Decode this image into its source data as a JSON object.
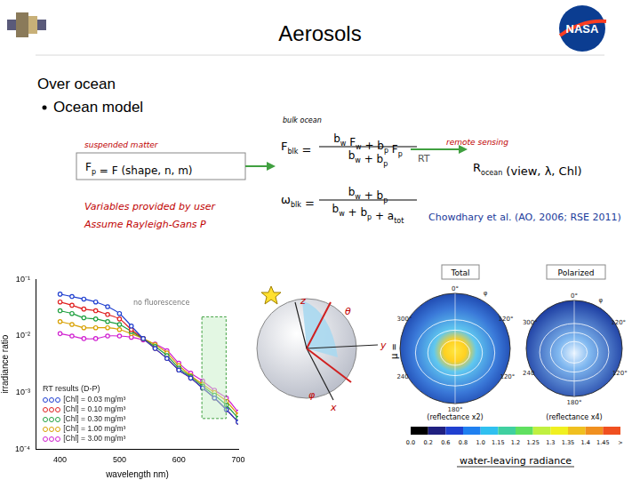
{
  "header": {
    "title": "Aerosols",
    "logo_text": "NASA"
  },
  "section": "Over ocean",
  "bullet": "Ocean model",
  "diagram": {
    "bulk_label": "bulk ocean",
    "suspended_label": "suspended matter",
    "particle_formula": [
      {
        "t": "F",
        "sub": "p"
      },
      {
        "t": " = F (shape, n, m)"
      }
    ],
    "user_notes": [
      "Variables provided by user",
      "Assume Rayleigh-Gans P"
    ],
    "bulk_F": {
      "lhs": [
        {
          "t": "F",
          "sub": "blk"
        },
        {
          "t": " ="
        }
      ],
      "num": [
        {
          "t": "b",
          "sub": "w"
        },
        {
          "t": " F",
          "sub": "w"
        },
        {
          "t": " + b",
          "sub": "p"
        },
        {
          "t": " F",
          "sub": "p"
        }
      ],
      "den": [
        {
          "t": "b",
          "sub": "w"
        },
        {
          "t": " + b",
          "sub": "p"
        }
      ]
    },
    "bulk_omega": {
      "lhs": [
        {
          "t": "ω",
          "sub": "blk"
        },
        {
          "t": " ="
        }
      ],
      "num": [
        {
          "t": "b",
          "sub": "w"
        },
        {
          "t": " + b",
          "sub": "p"
        }
      ],
      "den": [
        {
          "t": "b",
          "sub": "w"
        },
        {
          "t": " + b",
          "sub": "p"
        },
        {
          "t": " + a",
          "sub": "tot"
        }
      ]
    },
    "rt_label": "RT",
    "remote_label": "remote sensing",
    "output": [
      {
        "t": "R",
        "sub": "ocean"
      },
      {
        "t": " (view, λ, Chl)"
      }
    ],
    "reference": "Chowdhary et al. (AO, 2006; RSE 2011)"
  },
  "geometry": {
    "axes": [
      "z",
      "y",
      "x"
    ],
    "angles": [
      "θ",
      "φ"
    ]
  },
  "polar": {
    "panels": [
      {
        "title": "Total",
        "note": "(reflectance x2)",
        "labels": [
          "0°",
          "φ",
          "300°",
          "120°",
          "240",
          "120°",
          "180°"
        ]
      },
      {
        "title": "Polarized",
        "note": "(reflectance x4)",
        "labels": [
          "0°",
          "φ",
          "300°",
          "120°",
          "240",
          "120°",
          "180°"
        ]
      }
    ],
    "mu_label": "μ =",
    "colorbar_ticks": [
      {
        "value": 0,
        "label": "0.0"
      },
      0.2,
      0.6,
      0.8,
      {
        "value": 1,
        "label": "1.0"
      },
      1.15,
      1.2,
      1.25,
      1.3,
      1.35,
      1.4,
      1.45
    ],
    "colorbar_overflow": ">",
    "colorbar_title": "water-leaving radiance"
  },
  "chart_data": {
    "type": "line",
    "x": [
      400,
      420,
      440,
      460,
      480,
      500,
      520,
      540,
      560,
      580,
      600,
      620,
      640,
      660,
      680,
      700
    ],
    "series": [
      {
        "name": "[Chl] = 0.03 mg/m³",
        "color": "#2040d0",
        "values": [
          0.055,
          0.05,
          0.045,
          0.04,
          0.033,
          0.025,
          0.015,
          0.009,
          0.006,
          0.004,
          0.0025,
          0.0018,
          0.0012,
          0.0008,
          0.0005,
          0.0003
        ]
      },
      {
        "name": "[Chl] = 0.10 mg/m³",
        "color": "#e02020",
        "values": [
          0.04,
          0.035,
          0.03,
          0.028,
          0.024,
          0.02,
          0.013,
          0.009,
          0.006,
          0.004,
          0.0025,
          0.0018,
          0.0012,
          0.0008,
          0.0005,
          0.0003
        ]
      },
      {
        "name": "[Chl] = 0.30 mg/m³",
        "color": "#20a040",
        "values": [
          0.028,
          0.025,
          0.021,
          0.02,
          0.018,
          0.016,
          0.012,
          0.009,
          0.0065,
          0.0045,
          0.0027,
          0.0019,
          0.0013,
          0.0009,
          0.0006,
          0.00035
        ]
      },
      {
        "name": "[Chl] = 1.00 mg/m³",
        "color": "#d8a000",
        "values": [
          0.018,
          0.016,
          0.014,
          0.014,
          0.014,
          0.013,
          0.011,
          0.009,
          0.007,
          0.005,
          0.003,
          0.002,
          0.0014,
          0.001,
          0.0007,
          0.0004
        ]
      },
      {
        "name": "[Chl] = 3.00 mg/m³",
        "color": "#d020d0",
        "values": [
          0.011,
          0.01,
          0.009,
          0.009,
          0.01,
          0.01,
          0.0095,
          0.0085,
          0.0072,
          0.0055,
          0.0033,
          0.0022,
          0.0016,
          0.0011,
          0.0008,
          0.00045
        ]
      }
    ],
    "xlim": [
      360,
      700
    ],
    "xticks": [
      400,
      500,
      600,
      700
    ],
    "ylim": [
      0.0001,
      0.1
    ],
    "yticks": [
      {
        "value": 0.0001,
        "label": "10⁻⁴"
      },
      {
        "value": 0.001,
        "label": "10⁻³"
      },
      {
        "value": 0.01,
        "label": "10⁻²"
      },
      {
        "value": 0.1,
        "label": "10⁻¹"
      }
    ],
    "log": "y",
    "grid": false,
    "x_label": "wavelength nm)",
    "y_label": "irradiance ratio",
    "legend_title": "RT results (D-P)",
    "legend": "lower left",
    "annotation": "no fluorescence",
    "marker": "circle"
  }
}
